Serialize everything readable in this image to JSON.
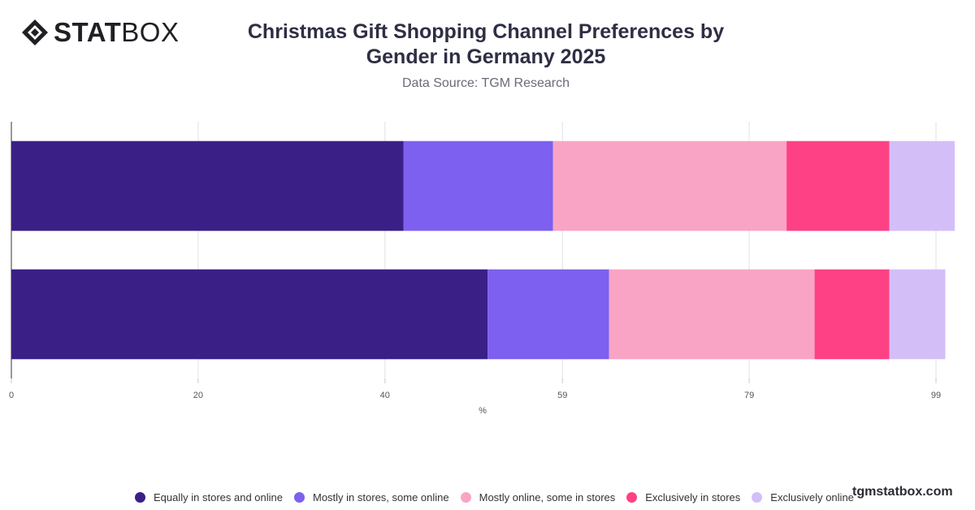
{
  "logo": {
    "bold": "STAT",
    "light": "BOX",
    "icon": "statbox-diamond-icon"
  },
  "header": {
    "title_line1": "Christmas Gift Shopping Channel Preferences by",
    "title_line2": "Gender in Germany 2025",
    "subtitle": "Data Source: TGM Research"
  },
  "footer": {
    "brand": "tgmstatbox.com"
  },
  "chart_data": {
    "type": "bar",
    "orientation": "horizontal",
    "stacked": true,
    "title": "Christmas Gift Shopping Channel Preferences by Gender in Germany 2025",
    "subtitle": "Data Source: TGM Research",
    "xlabel": "%",
    "xlim": [
      0,
      101
    ],
    "xticks": [
      0,
      20,
      40,
      59,
      79,
      99
    ],
    "grid": true,
    "legend_position": "bottom",
    "categories": [
      "",
      ""
    ],
    "series": [
      {
        "name": "Equally in stores and online",
        "color": "#3a1f87",
        "values": [
          42,
          51
        ]
      },
      {
        "name": "Mostly in stores, some online",
        "color": "#7d60ef",
        "values": [
          16,
          13
        ]
      },
      {
        "name": "Mostly online, some in stores",
        "color": "#f9a4c4",
        "values": [
          25,
          22
        ]
      },
      {
        "name": "Exclusively in stores",
        "color": "#fe4184",
        "values": [
          11,
          8
        ]
      },
      {
        "name": "Exclusively online",
        "color": "#d4bef8",
        "values": [
          7,
          6
        ]
      }
    ]
  }
}
